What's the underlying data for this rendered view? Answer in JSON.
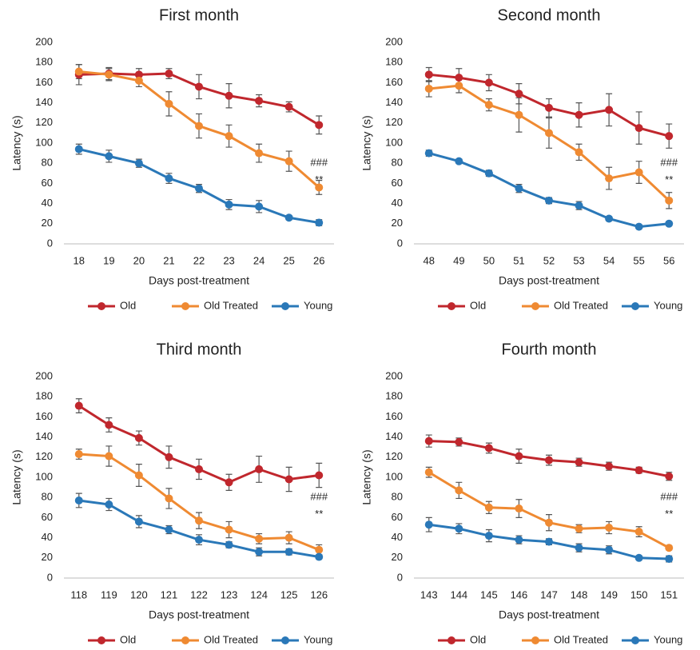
{
  "chart_data": [
    {
      "type": "line",
      "title": "First month",
      "x_label": "Days post-treatment",
      "y_label": "Latency (s)",
      "categories": [
        "18",
        "19",
        "20",
        "21",
        "22",
        "23",
        "24",
        "25",
        "26"
      ],
      "series": [
        {
          "name": "Old",
          "color": "#c0272d",
          "values": [
            168,
            169,
            168,
            169,
            156,
            147,
            142,
            136,
            118
          ],
          "errors": [
            10,
            6,
            6,
            5,
            12,
            12,
            6,
            5,
            9
          ]
        },
        {
          "name": "Old Treated",
          "color": "#ef8a32",
          "values": [
            171,
            168,
            162,
            139,
            117,
            107,
            90,
            82,
            56
          ],
          "errors": [
            7,
            6,
            6,
            12,
            12,
            11,
            9,
            10,
            7
          ]
        },
        {
          "name": "Young",
          "color": "#2a78b8",
          "values": [
            94,
            87,
            80,
            65,
            55,
            39,
            37,
            26,
            21
          ],
          "errors": [
            5,
            6,
            4,
            5,
            4,
            5,
            6,
            2,
            3
          ]
        }
      ],
      "ylim": [
        0,
        200
      ],
      "yticks": [
        0,
        20,
        40,
        60,
        80,
        100,
        120,
        140,
        160,
        180,
        200
      ],
      "annotations": [
        "###",
        "**"
      ],
      "legend": "bottom"
    },
    {
      "type": "line",
      "title": "Second month",
      "x_label": "Days post-treatment",
      "y_label": "Latency (s)",
      "categories": [
        "48",
        "49",
        "50",
        "51",
        "52",
        "53",
        "54",
        "55",
        "56"
      ],
      "series": [
        {
          "name": "Old",
          "color": "#c0272d",
          "values": [
            168,
            165,
            160,
            149,
            135,
            128,
            133,
            115,
            107
          ],
          "errors": [
            7,
            9,
            8,
            10,
            9,
            12,
            16,
            16,
            12
          ]
        },
        {
          "name": "Old Treated",
          "color": "#ef8a32",
          "values": [
            154,
            157,
            138,
            128,
            110,
            91,
            65,
            71,
            43
          ],
          "errors": [
            8,
            7,
            6,
            17,
            15,
            8,
            11,
            11,
            8
          ]
        },
        {
          "name": "Young",
          "color": "#2a78b8",
          "values": [
            90,
            82,
            70,
            55,
            43,
            38,
            25,
            17,
            20
          ],
          "errors": [
            3,
            2,
            3,
            4,
            3,
            4,
            2,
            1,
            2
          ]
        }
      ],
      "ylim": [
        0,
        200
      ],
      "yticks": [
        0,
        20,
        40,
        60,
        80,
        100,
        120,
        140,
        160,
        180,
        200
      ],
      "annotations": [
        "###",
        "**"
      ],
      "legend": "bottom"
    },
    {
      "type": "line",
      "title": "Third month",
      "x_label": "Days post-treatment",
      "y_label": "Latency (s)",
      "categories": [
        "118",
        "119",
        "120",
        "121",
        "122",
        "123",
        "124",
        "125",
        "126"
      ],
      "series": [
        {
          "name": "Old",
          "color": "#c0272d",
          "values": [
            171,
            152,
            139,
            120,
            108,
            95,
            108,
            98,
            102
          ],
          "errors": [
            7,
            7,
            7,
            11,
            10,
            8,
            13,
            12,
            12
          ]
        },
        {
          "name": "Old Treated",
          "color": "#ef8a32",
          "values": [
            123,
            121,
            102,
            79,
            57,
            48,
            39,
            40,
            28
          ],
          "errors": [
            5,
            10,
            11,
            10,
            8,
            8,
            5,
            6,
            5
          ]
        },
        {
          "name": "Young",
          "color": "#2a78b8",
          "values": [
            77,
            73,
            56,
            48,
            38,
            33,
            26,
            26,
            21
          ],
          "errors": [
            7,
            6,
            6,
            4,
            5,
            3,
            4,
            3,
            2
          ]
        }
      ],
      "ylim": [
        0,
        200
      ],
      "yticks": [
        0,
        20,
        40,
        60,
        80,
        100,
        120,
        140,
        160,
        180,
        200
      ],
      "annotations": [
        "###",
        "**"
      ],
      "legend": "bottom"
    },
    {
      "type": "line",
      "title": "Fourth month",
      "x_label": "Days post-treatment",
      "y_label": "Latency (s)",
      "categories": [
        "143",
        "144",
        "145",
        "146",
        "147",
        "148",
        "149",
        "150",
        "151"
      ],
      "series": [
        {
          "name": "Old",
          "color": "#c0272d",
          "values": [
            136,
            135,
            129,
            121,
            117,
            115,
            111,
            107,
            101
          ],
          "errors": [
            6,
            4,
            5,
            7,
            5,
            4,
            4,
            3,
            4
          ]
        },
        {
          "name": "Old Treated",
          "color": "#ef8a32",
          "values": [
            105,
            87,
            70,
            69,
            55,
            49,
            50,
            46,
            30
          ],
          "errors": [
            5,
            8,
            6,
            9,
            8,
            4,
            6,
            5,
            2
          ]
        },
        {
          "name": "Young",
          "color": "#2a78b8",
          "values": [
            53,
            49,
            42,
            38,
            36,
            30,
            28,
            20,
            19
          ],
          "errors": [
            7,
            5,
            6,
            4,
            3,
            4,
            4,
            2,
            3
          ]
        }
      ],
      "ylim": [
        0,
        200
      ],
      "yticks": [
        0,
        20,
        40,
        60,
        80,
        100,
        120,
        140,
        160,
        180,
        200
      ],
      "annotations": [
        "###",
        "**"
      ],
      "legend": "bottom"
    }
  ]
}
